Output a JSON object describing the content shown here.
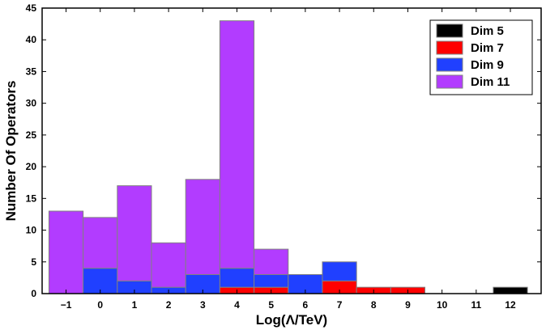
{
  "chart_data": {
    "type": "bar",
    "stacked": true,
    "categories": [
      "−1",
      "0",
      "1",
      "2",
      "3",
      "4",
      "5",
      "6",
      "7",
      "8",
      "9",
      "10",
      "11",
      "12"
    ],
    "x": [
      -1,
      0,
      1,
      2,
      3,
      4,
      5,
      6,
      7,
      8,
      9,
      10,
      11,
      12
    ],
    "series": [
      {
        "name": "Dim 5",
        "color": "#000000",
        "values": [
          0,
          0,
          0,
          0,
          0,
          0,
          0,
          0,
          0,
          0,
          0,
          0,
          0,
          1
        ]
      },
      {
        "name": "Dim 7",
        "color": "#ff0000",
        "values": [
          0,
          0,
          0,
          0,
          0,
          1,
          1,
          0,
          2,
          1,
          1,
          0,
          0,
          0
        ]
      },
      {
        "name": "Dim 9",
        "color": "#2040ff",
        "values": [
          0,
          4,
          2,
          1,
          3,
          3,
          2,
          3,
          3,
          0,
          0,
          0,
          0,
          0
        ]
      },
      {
        "name": "Dim 11",
        "color": "#b23cff",
        "values": [
          13,
          8,
          15,
          7,
          15,
          39,
          4,
          0,
          0,
          0,
          0,
          0,
          0,
          0
        ]
      }
    ],
    "xlabel": "Log(Λ/TeV)",
    "ylabel": "Number Of Operators",
    "ylim": [
      0,
      45
    ],
    "yticks": [
      "0",
      "5",
      "10",
      "15",
      "20",
      "25",
      "30",
      "35",
      "40",
      "45"
    ],
    "grid": false,
    "legend_position": "top-right"
  }
}
